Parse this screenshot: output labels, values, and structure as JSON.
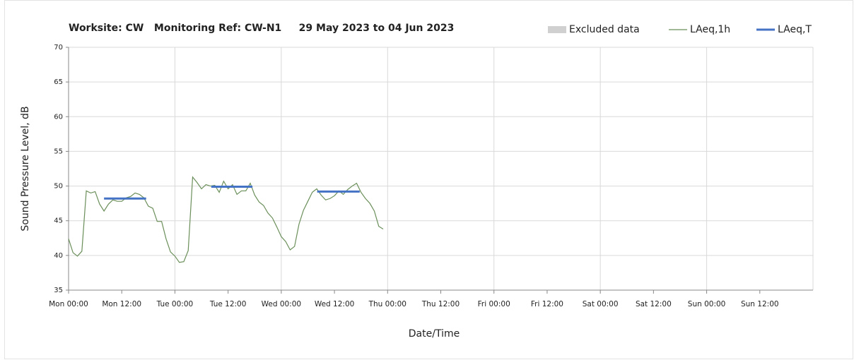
{
  "chart_data": {
    "type": "line",
    "title": "Worksite: CW   Monitoring Ref: CW-N1     29 May 2023 to 04 Jun 2023",
    "x_label": "Date/Time",
    "y_label": "Sound Pressure Level, dB",
    "xlim": [
      0,
      168
    ],
    "xticks": [
      {
        "value": 0,
        "label": "Mon 00:00"
      },
      {
        "value": 12,
        "label": "Mon 12:00"
      },
      {
        "value": 24,
        "label": "Tue 00:00"
      },
      {
        "value": 36,
        "label": "Tue 12:00"
      },
      {
        "value": 48,
        "label": "Wed 00:00"
      },
      {
        "value": 60,
        "label": "Wed 12:00"
      },
      {
        "value": 72,
        "label": "Thu 00:00"
      },
      {
        "value": 84,
        "label": "Thu 12:00"
      },
      {
        "value": 96,
        "label": "Fri 00:00"
      },
      {
        "value": 108,
        "label": "Fri 12:00"
      },
      {
        "value": 120,
        "label": "Sat 00:00"
      },
      {
        "value": 132,
        "label": "Sat 12:00"
      },
      {
        "value": 144,
        "label": "Sun 00:00"
      },
      {
        "value": 156,
        "label": "Sun 12:00"
      }
    ],
    "ylim": [
      35,
      70
    ],
    "yticks": [
      35,
      40,
      45,
      50,
      55,
      60,
      65,
      70
    ],
    "grid": true,
    "legend": "top-right",
    "series": [
      {
        "name": "Excluded data",
        "color": "#d0d0d0",
        "x": [],
        "values": []
      },
      {
        "name": "LAeq,1h",
        "color": "#6b8f5a",
        "x": [
          0,
          1,
          2,
          3,
          4,
          5,
          6,
          7,
          8,
          9,
          10,
          11,
          12,
          13,
          14,
          15,
          16,
          17,
          18,
          19,
          20,
          21,
          22,
          23,
          24,
          25,
          26,
          27,
          28,
          29,
          30,
          31,
          32,
          33,
          34,
          35,
          36,
          37,
          38,
          39,
          40,
          41,
          42,
          43,
          44,
          45,
          46,
          47,
          48,
          49,
          50,
          51,
          52,
          53,
          54,
          55,
          56,
          57,
          58,
          59,
          60,
          61,
          62,
          63,
          64,
          65,
          66,
          67,
          68,
          69,
          70,
          71
        ],
        "values": [
          42.4,
          40.4,
          39.9,
          40.6,
          49.3,
          49.0,
          49.2,
          47.4,
          46.4,
          47.4,
          48.0,
          47.8,
          47.8,
          48.3,
          48.5,
          49.0,
          48.8,
          48.3,
          47.1,
          46.8,
          44.9,
          44.9,
          42.4,
          40.5,
          39.9,
          39.0,
          39.1,
          40.7,
          51.3,
          50.5,
          49.6,
          50.2,
          50.0,
          50.1,
          49.1,
          50.7,
          49.6,
          50.2,
          48.8,
          49.3,
          49.3,
          50.4,
          48.7,
          47.7,
          47.2,
          46.1,
          45.4,
          44.1,
          42.7,
          42.0,
          40.8,
          41.3,
          44.5,
          46.5,
          47.8,
          49.1,
          49.6,
          48.7,
          48.0,
          48.2,
          48.6,
          49.3,
          48.8,
          49.5,
          50.0,
          50.4,
          49.1,
          48.2,
          47.5,
          46.4,
          44.2,
          43.8
        ]
      },
      {
        "name": "LAeq,T",
        "color": "#4472c4",
        "x": [
          8,
          17.5,
          null,
          32.2,
          41.5,
          null,
          56.1,
          65.7
        ],
        "values": [
          48.2,
          48.2,
          null,
          49.9,
          49.9,
          null,
          49.2,
          49.2
        ]
      }
    ]
  }
}
